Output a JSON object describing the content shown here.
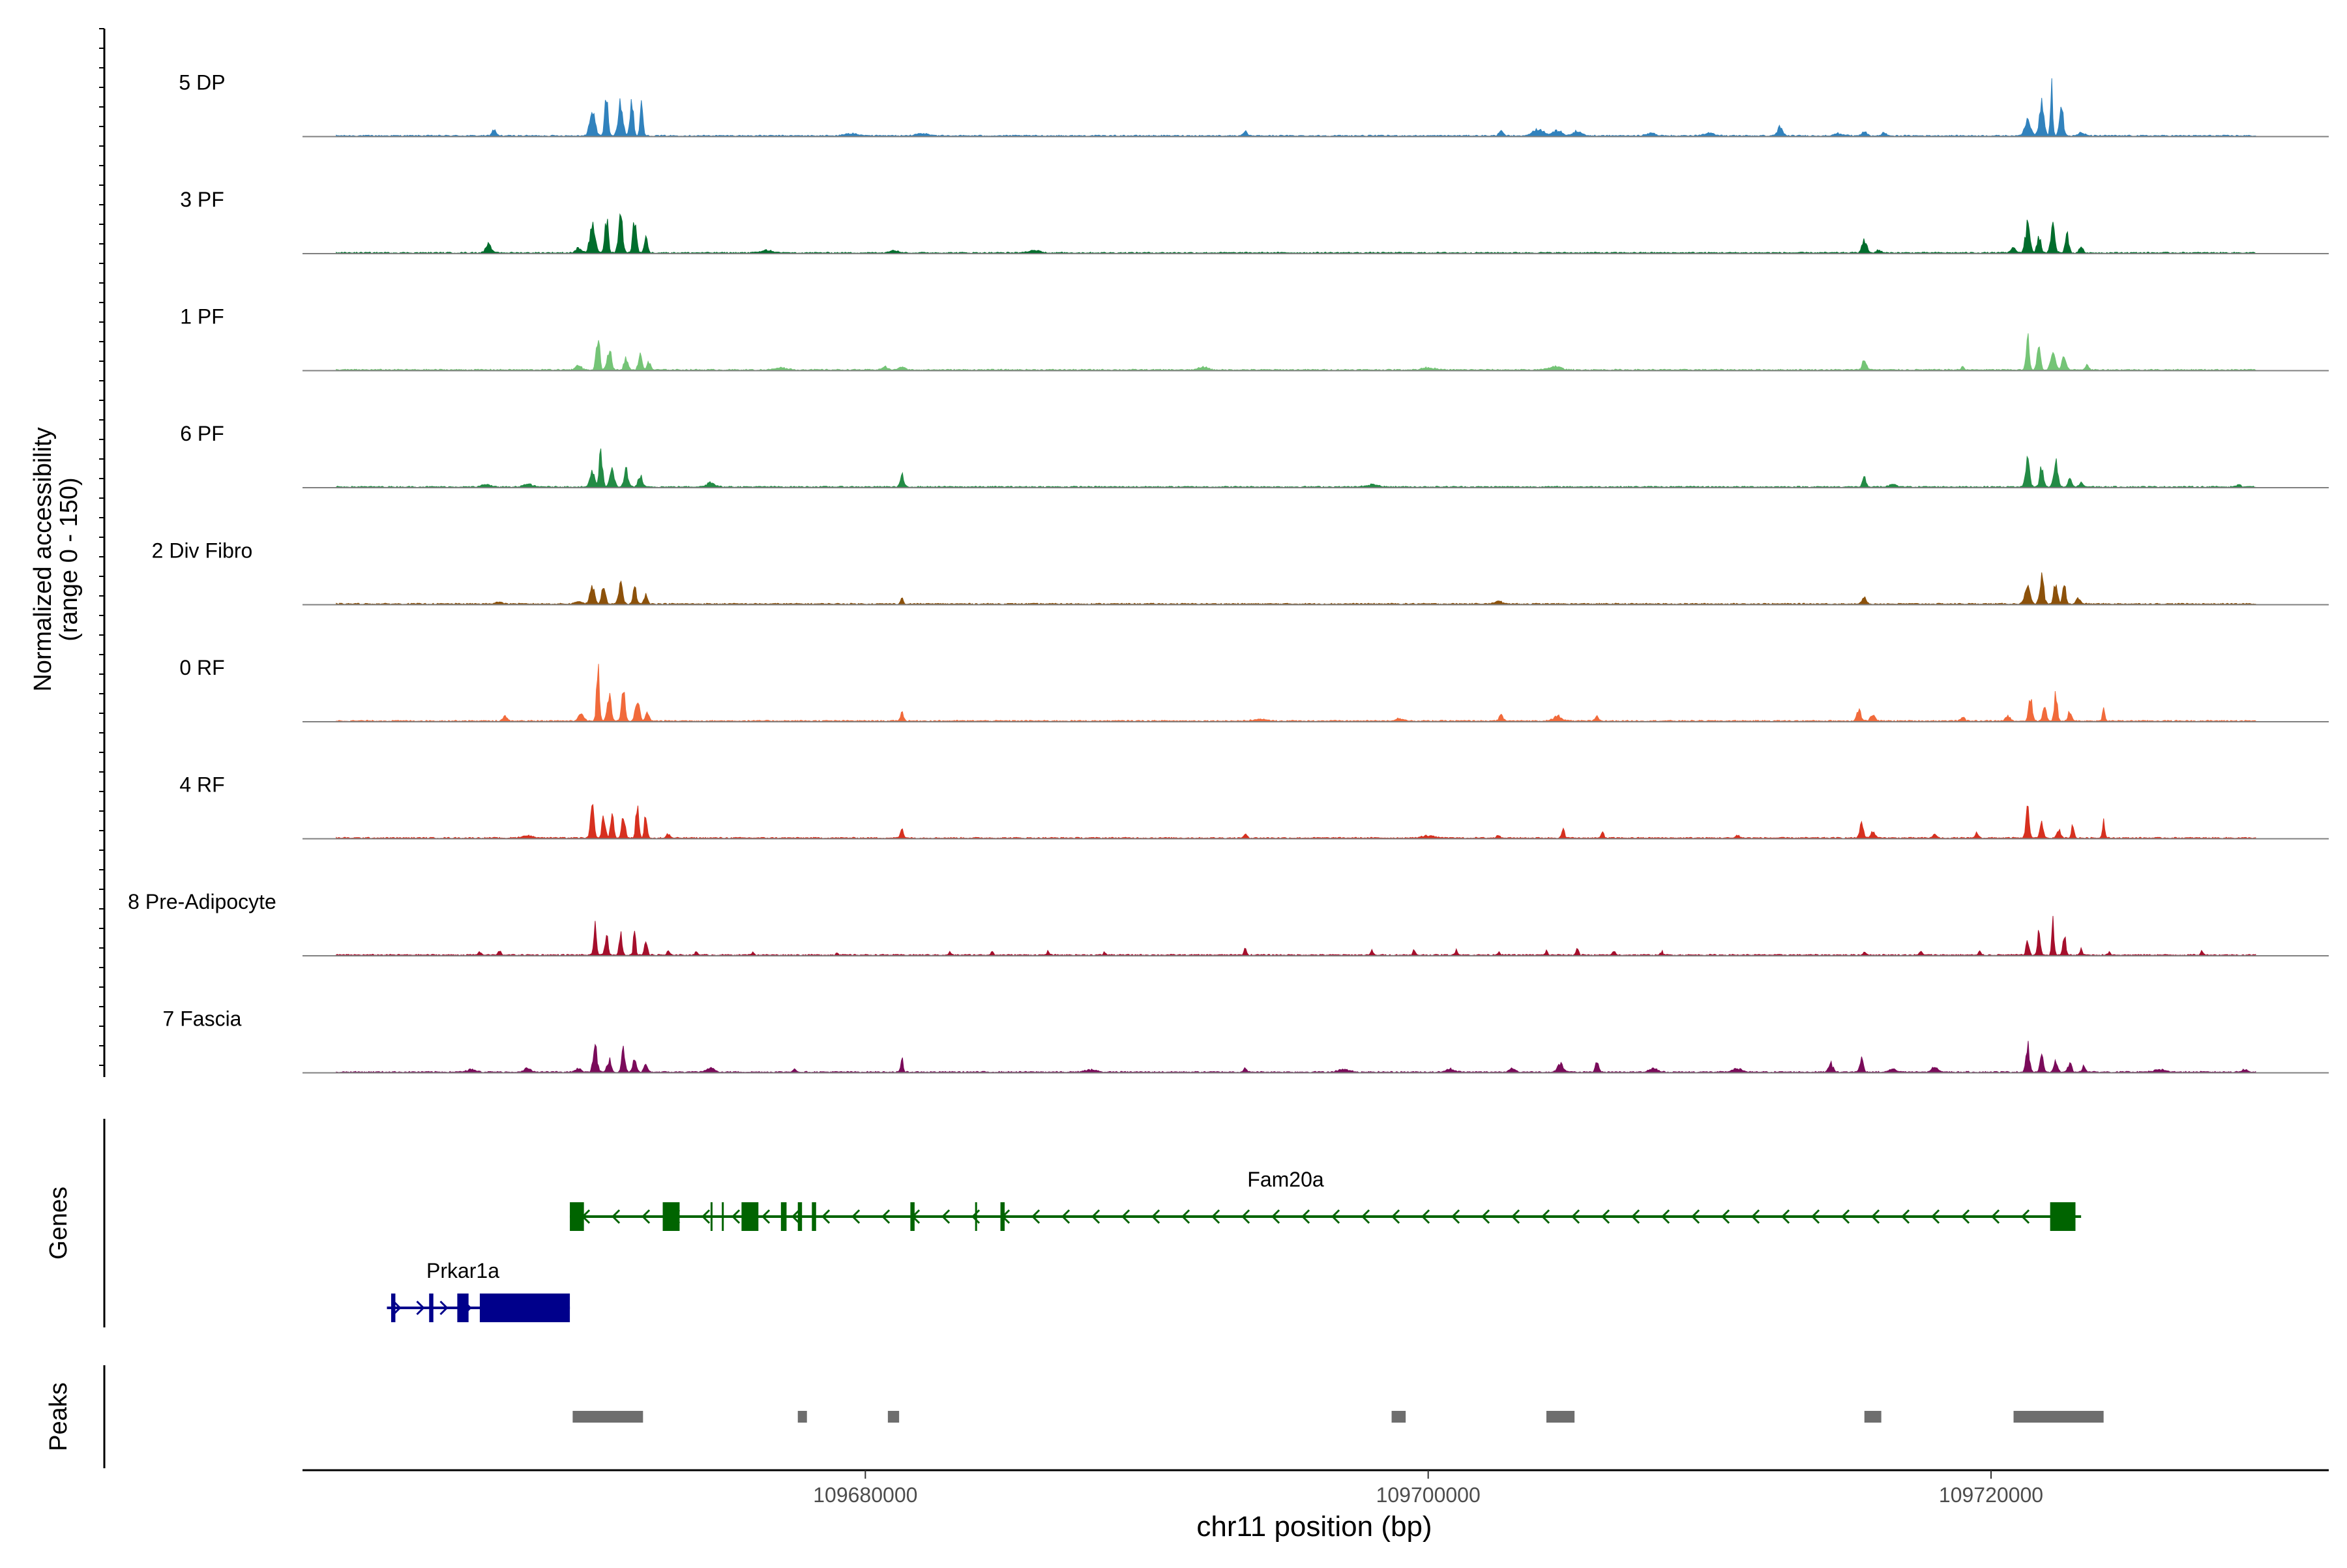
{
  "chart_data": {
    "type": "area",
    "title": "",
    "xlabel": "chr11 position (bp)",
    "ylabel_line1": "Normalized accessibility",
    "ylabel_line2": "(range 0 - 150)",
    "ylim": [
      0,
      150
    ],
    "xlim": [
      109660000,
      109732000
    ],
    "x_ticks": [
      109680000,
      109700000,
      109720000
    ],
    "x_tick_labels": [
      "109680000",
      "109700000",
      "109720000"
    ],
    "tracks": [
      {
        "name": "5 DP",
        "color": "#3182BD",
        "peaks": [
          [
            109666800,
            10,
            70
          ],
          [
            109670300,
            45,
            90
          ],
          [
            109670800,
            60,
            60
          ],
          [
            109671300,
            55,
            80
          ],
          [
            109671700,
            55,
            60
          ],
          [
            109672050,
            50,
            50
          ],
          [
            109679500,
            4,
            200
          ],
          [
            109682000,
            4,
            200
          ],
          [
            109693500,
            7,
            60
          ],
          [
            109702600,
            7,
            80
          ],
          [
            109703900,
            10,
            200
          ],
          [
            109704600,
            9,
            150
          ],
          [
            109705300,
            8,
            150
          ],
          [
            109707900,
            5,
            150
          ],
          [
            109710000,
            4,
            200
          ],
          [
            109712500,
            14,
            90
          ],
          [
            109714600,
            4,
            150
          ],
          [
            109715500,
            7,
            80
          ],
          [
            109716200,
            5,
            80
          ],
          [
            109721300,
            25,
            110
          ],
          [
            109721800,
            55,
            80
          ],
          [
            109722150,
            90,
            40
          ],
          [
            109722500,
            45,
            70
          ],
          [
            109723200,
            5,
            120
          ]
        ]
      },
      {
        "name": "3 PF",
        "color": "#006D2C",
        "peaks": [
          [
            109666600,
            15,
            90
          ],
          [
            109669800,
            8,
            100
          ],
          [
            109670300,
            45,
            90
          ],
          [
            109670800,
            60,
            60
          ],
          [
            109671300,
            65,
            70
          ],
          [
            109671800,
            60,
            60
          ],
          [
            109672200,
            25,
            60
          ],
          [
            109676500,
            4,
            200
          ],
          [
            109681000,
            5,
            150
          ],
          [
            109686000,
            4,
            200
          ],
          [
            109715500,
            20,
            80
          ],
          [
            109716000,
            5,
            80
          ],
          [
            109720800,
            10,
            80
          ],
          [
            109721300,
            45,
            80
          ],
          [
            109721700,
            30,
            60
          ],
          [
            109722200,
            50,
            70
          ],
          [
            109722700,
            30,
            60
          ],
          [
            109723200,
            12,
            60
          ]
        ]
      },
      {
        "name": "1 PF",
        "color": "#74C476",
        "peaks": [
          [
            109669800,
            8,
            100
          ],
          [
            109670500,
            55,
            60
          ],
          [
            109670900,
            35,
            70
          ],
          [
            109671500,
            20,
            70
          ],
          [
            109672000,
            30,
            60
          ],
          [
            109672300,
            15,
            60
          ],
          [
            109677000,
            4,
            200
          ],
          [
            109680700,
            5,
            100
          ],
          [
            109681300,
            5,
            100
          ],
          [
            109692000,
            5,
            150
          ],
          [
            109700000,
            4,
            200
          ],
          [
            109704500,
            6,
            200
          ],
          [
            109715500,
            18,
            70
          ],
          [
            109719000,
            7,
            40
          ],
          [
            109721300,
            60,
            50
          ],
          [
            109721700,
            40,
            60
          ],
          [
            109722200,
            35,
            80
          ],
          [
            109722600,
            20,
            80
          ],
          [
            109723400,
            8,
            60
          ]
        ]
      },
      {
        "name": "6 PF",
        "color": "#238B45",
        "peaks": [
          [
            109666500,
            4,
            150
          ],
          [
            109668000,
            5,
            150
          ],
          [
            109670300,
            25,
            80
          ],
          [
            109670600,
            55,
            60
          ],
          [
            109671000,
            35,
            70
          ],
          [
            109671500,
            30,
            70
          ],
          [
            109672000,
            20,
            70
          ],
          [
            109674500,
            7,
            150
          ],
          [
            109681300,
            20,
            60
          ],
          [
            109698000,
            4,
            200
          ],
          [
            109715500,
            15,
            60
          ],
          [
            109716500,
            5,
            100
          ],
          [
            109721300,
            45,
            70
          ],
          [
            109721800,
            35,
            60
          ],
          [
            109722300,
            40,
            70
          ],
          [
            109722800,
            15,
            60
          ],
          [
            109723200,
            7,
            60
          ],
          [
            109728800,
            5,
            60
          ]
        ]
      },
      {
        "name": "2 Div Fibro",
        "color": "#8C510A",
        "peaks": [
          [
            109667000,
            4,
            100
          ],
          [
            109669800,
            5,
            100
          ],
          [
            109670300,
            30,
            80
          ],
          [
            109670700,
            35,
            60
          ],
          [
            109671300,
            32,
            70
          ],
          [
            109671800,
            28,
            60
          ],
          [
            109672200,
            15,
            60
          ],
          [
            109681300,
            12,
            40
          ],
          [
            109702500,
            4,
            150
          ],
          [
            109715500,
            10,
            80
          ],
          [
            109721300,
            25,
            90
          ],
          [
            109721800,
            45,
            70
          ],
          [
            109722300,
            42,
            60
          ],
          [
            109722600,
            40,
            50
          ],
          [
            109723100,
            10,
            70
          ]
        ]
      },
      {
        "name": "0 RF",
        "color": "#F16A3B",
        "peaks": [
          [
            109667200,
            7,
            70
          ],
          [
            109669900,
            12,
            90
          ],
          [
            109670500,
            88,
            50
          ],
          [
            109670900,
            45,
            70
          ],
          [
            109671400,
            55,
            60
          ],
          [
            109671900,
            40,
            70
          ],
          [
            109672250,
            15,
            60
          ],
          [
            109681300,
            18,
            50
          ],
          [
            109694000,
            3,
            200
          ],
          [
            109699000,
            4,
            150
          ],
          [
            109702600,
            10,
            70
          ],
          [
            109704600,
            8,
            150
          ],
          [
            109706000,
            7,
            60
          ],
          [
            109715300,
            20,
            70
          ],
          [
            109715800,
            12,
            80
          ],
          [
            109719000,
            8,
            60
          ],
          [
            109720600,
            8,
            80
          ],
          [
            109721400,
            40,
            60
          ],
          [
            109721900,
            30,
            60
          ],
          [
            109722300,
            50,
            50
          ],
          [
            109722800,
            15,
            60
          ],
          [
            109724000,
            20,
            40
          ]
        ]
      },
      {
        "name": "4 RF",
        "color": "#D7301F",
        "peaks": [
          [
            109668000,
            4,
            200
          ],
          [
            109670300,
            50,
            60
          ],
          [
            109670700,
            35,
            60
          ],
          [
            109671000,
            45,
            50
          ],
          [
            109671400,
            40,
            60
          ],
          [
            109671900,
            60,
            50
          ],
          [
            109672200,
            40,
            50
          ],
          [
            109673000,
            7,
            60
          ],
          [
            109681300,
            18,
            50
          ],
          [
            109693500,
            6,
            60
          ],
          [
            109700000,
            4,
            200
          ],
          [
            109702500,
            6,
            60
          ],
          [
            109704800,
            14,
            50
          ],
          [
            109706200,
            12,
            40
          ],
          [
            109711000,
            5,
            60
          ],
          [
            109715400,
            25,
            60
          ],
          [
            109715800,
            10,
            80
          ],
          [
            109718000,
            7,
            60
          ],
          [
            109719500,
            8,
            60
          ],
          [
            109721300,
            45,
            60
          ],
          [
            109721800,
            25,
            60
          ],
          [
            109722400,
            15,
            60
          ],
          [
            109722900,
            20,
            50
          ],
          [
            109724000,
            30,
            40
          ]
        ]
      },
      {
        "name": "8 Pre-Adipocyte",
        "color": "#A50F2C",
        "peaks": [
          [
            109666300,
            6,
            50
          ],
          [
            109667000,
            7,
            50
          ],
          [
            109670400,
            45,
            50
          ],
          [
            109670800,
            35,
            50
          ],
          [
            109671300,
            40,
            50
          ],
          [
            109671800,
            45,
            40
          ],
          [
            109672200,
            25,
            50
          ],
          [
            109673000,
            7,
            40
          ],
          [
            109674000,
            6,
            40
          ],
          [
            109676000,
            5,
            40
          ],
          [
            109679000,
            5,
            40
          ],
          [
            109683000,
            5,
            40
          ],
          [
            109684500,
            7,
            40
          ],
          [
            109686500,
            6,
            40
          ],
          [
            109688500,
            5,
            40
          ],
          [
            109693500,
            12,
            40
          ],
          [
            109698000,
            8,
            40
          ],
          [
            109699500,
            8,
            40
          ],
          [
            109701000,
            10,
            40
          ],
          [
            109702500,
            5,
            40
          ],
          [
            109704200,
            7,
            40
          ],
          [
            109705300,
            14,
            40
          ],
          [
            109706600,
            8,
            40
          ],
          [
            109708300,
            6,
            40
          ],
          [
            109715500,
            7,
            40
          ],
          [
            109717500,
            8,
            40
          ],
          [
            109719600,
            6,
            40
          ],
          [
            109721300,
            25,
            50
          ],
          [
            109721700,
            40,
            50
          ],
          [
            109722200,
            55,
            40
          ],
          [
            109722600,
            35,
            50
          ],
          [
            109723200,
            10,
            40
          ],
          [
            109724200,
            6,
            40
          ],
          [
            109727500,
            8,
            40
          ]
        ]
      },
      {
        "name": "7 Fascia",
        "color": "#7A0B5A",
        "peaks": [
          [
            109666000,
            5,
            150
          ],
          [
            109668000,
            7,
            100
          ],
          [
            109669800,
            6,
            100
          ],
          [
            109670400,
            40,
            70
          ],
          [
            109670900,
            20,
            70
          ],
          [
            109671400,
            35,
            60
          ],
          [
            109671800,
            25,
            60
          ],
          [
            109672200,
            12,
            60
          ],
          [
            109674500,
            6,
            150
          ],
          [
            109677500,
            5,
            60
          ],
          [
            109681300,
            25,
            40
          ],
          [
            109688000,
            4,
            200
          ],
          [
            109693500,
            6,
            60
          ],
          [
            109697000,
            4,
            200
          ],
          [
            109700800,
            5,
            150
          ],
          [
            109703000,
            6,
            100
          ],
          [
            109704700,
            14,
            100
          ],
          [
            109706000,
            15,
            60
          ],
          [
            109708000,
            6,
            150
          ],
          [
            109711000,
            6,
            150
          ],
          [
            109714300,
            15,
            80
          ],
          [
            109715400,
            22,
            60
          ],
          [
            109716500,
            6,
            100
          ],
          [
            109718000,
            8,
            100
          ],
          [
            109721300,
            45,
            60
          ],
          [
            109721800,
            25,
            60
          ],
          [
            109722300,
            20,
            60
          ],
          [
            109722800,
            15,
            60
          ],
          [
            109723300,
            10,
            60
          ],
          [
            109726000,
            4,
            200
          ],
          [
            109729000,
            4,
            100
          ]
        ]
      }
    ],
    "genes": [
      {
        "name": "Fam20a",
        "color": "#006400",
        "strand": "-",
        "start": 109669500,
        "end": 109723200,
        "exons": [
          [
            109669500,
            109670000
          ],
          [
            109672800,
            109673400
          ],
          [
            109675600,
            109676200
          ],
          [
            109677000,
            109677200
          ],
          [
            109677600,
            109677750
          ],
          [
            109678100,
            109678250
          ],
          [
            109681600,
            109681750
          ],
          [
            109684800,
            109684950
          ]
        ],
        "thin_exons": [
          [
            109674500,
            109674600
          ],
          [
            109674900,
            109675000
          ],
          [
            109683900,
            109684000
          ]
        ],
        "big_exons": [
          [
            109722100,
            109723000
          ]
        ]
      },
      {
        "name": "Prkar1a",
        "color": "#00008B",
        "strand": "+",
        "start": 109663000,
        "end": 109669500,
        "exons": [
          [
            109663150,
            109663300
          ],
          [
            109664500,
            109664650
          ],
          [
            109665500,
            109665900
          ],
          [
            109666300,
            109669500
          ]
        ],
        "thin_exons": [],
        "big_exons": []
      }
    ],
    "peaks_track": [
      [
        109669600,
        109672100
      ],
      [
        109677600,
        109677900
      ],
      [
        109680800,
        109681200
      ],
      [
        109698700,
        109699200
      ],
      [
        109704200,
        109705200
      ],
      [
        109715500,
        109716100
      ],
      [
        109720800,
        109724000
      ]
    ],
    "panel_labels": {
      "genes": "Genes",
      "peaks": "Peaks"
    }
  }
}
